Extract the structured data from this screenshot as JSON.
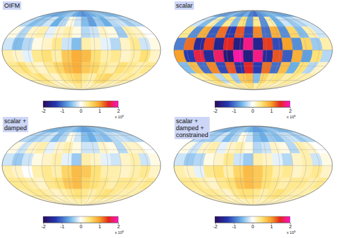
{
  "chart_data": [
    {
      "type": "heatmap",
      "title": "OIFM",
      "xlim": [
        -180,
        180
      ],
      "ylim": [
        -90,
        90
      ],
      "xticks": [
        -180,
        -150,
        -120,
        -90,
        -60,
        -30,
        0,
        30,
        60,
        90,
        120,
        150,
        180
      ],
      "yticks": [
        -90,
        -60,
        -30,
        0,
        30,
        60,
        90
      ],
      "grid": true,
      "tick_labels": false,
      "cells": [
        [
          -0.5,
          -0.6,
          -0.7,
          -0.6,
          -0.5,
          -0.4,
          -0.6,
          -0.7,
          -0.8,
          -0.7,
          -0.6,
          -0.5,
          -0.4,
          -0.5,
          -0.6,
          -0.5
        ],
        [
          -0.3,
          -0.5,
          -0.4,
          -0.2,
          -0.6,
          -0.3,
          0.1,
          -0.2,
          -0.5,
          -0.7,
          -0.4,
          -0.6,
          -0.3,
          -0.2,
          -0.4,
          -0.3
        ],
        [
          0.1,
          -0.3,
          0.2,
          0.3,
          -0.1,
          0.2,
          0.3,
          0.1,
          -0.3,
          -0.2,
          0.2,
          0.1,
          -0.4,
          0.3,
          0.2,
          0.0
        ],
        [
          -0.2,
          -0.5,
          -0.3,
          0.1,
          0.2,
          0.4,
          -0.2,
          -0.5,
          0.3,
          0.2,
          -0.1,
          -0.3,
          0.2,
          0.4,
          -0.2,
          0.1
        ],
        [
          0.3,
          0.2,
          -0.1,
          0.4,
          0.5,
          0.3,
          0.7,
          0.9,
          0.8,
          0.5,
          0.3,
          0.4,
          0.2,
          0.3,
          0.5,
          0.2
        ],
        [
          0.4,
          0.5,
          0.3,
          0.2,
          0.4,
          0.6,
          0.8,
          0.9,
          0.7,
          0.6,
          0.4,
          0.3,
          0.5,
          0.4,
          0.3,
          0.4
        ],
        [
          0.3,
          0.4,
          0.5,
          0.3,
          0.2,
          0.4,
          0.5,
          0.6,
          0.4,
          0.3,
          0.5,
          0.6,
          0.4,
          0.3,
          0.4,
          0.3
        ],
        [
          0.2,
          0.3,
          0.3,
          0.2,
          0.3,
          0.2,
          0.3,
          0.4,
          0.3,
          0.2,
          0.3,
          0.3,
          0.2,
          0.3,
          0.2,
          0.2
        ]
      ],
      "colorbar_range": [
        -2,
        2
      ],
      "colorbar_ticks": [
        -2,
        -1,
        0,
        1,
        2
      ],
      "colorbar_label": "x 10⁵"
    },
    {
      "type": "heatmap",
      "title": "scalar",
      "xlim": [
        -180,
        180
      ],
      "ylim": [
        -90,
        90
      ],
      "xticks": [
        -180,
        -150,
        -120,
        -90,
        -60,
        -30,
        0,
        30,
        60,
        90,
        120,
        150,
        180
      ],
      "yticks": [
        -90,
        -60,
        -30,
        0,
        30,
        60,
        90
      ],
      "grid": true,
      "tick_labels": false,
      "cells": [
        [
          -0.6,
          -0.8,
          -0.7,
          -0.5,
          -0.7,
          -0.8,
          -0.6,
          -0.9,
          -1.0,
          -0.8,
          -0.7,
          -0.6,
          -0.5,
          -0.6,
          -0.7,
          -0.6
        ],
        [
          -0.2,
          -0.5,
          0.3,
          -0.6,
          0.4,
          -0.5,
          0.5,
          -0.7,
          0.4,
          -0.8,
          0.3,
          -0.6,
          -0.2,
          -0.4,
          -0.3,
          -0.2
        ],
        [
          0.4,
          -0.8,
          0.9,
          -1.1,
          1.2,
          -1.3,
          1.3,
          -1.2,
          1.1,
          -1.0,
          0.9,
          -0.8,
          0.6,
          -0.5,
          0.3,
          -0.2
        ],
        [
          -0.9,
          1.2,
          -1.5,
          1.4,
          -1.6,
          1.5,
          -1.7,
          1.8,
          -1.6,
          1.4,
          -1.2,
          1.0,
          -0.8,
          0.6,
          -0.4,
          0.3
        ],
        [
          1.0,
          -1.3,
          1.6,
          -1.5,
          1.7,
          -1.8,
          1.9,
          -1.7,
          1.8,
          -1.5,
          1.3,
          -1.1,
          0.9,
          -0.7,
          0.5,
          -0.3
        ],
        [
          -0.5,
          0.8,
          -1.0,
          1.1,
          -1.2,
          1.3,
          -1.4,
          1.5,
          -1.3,
          1.2,
          -1.0,
          0.8,
          -0.6,
          0.5,
          -0.3,
          0.2
        ],
        [
          0.3,
          0.4,
          0.6,
          -0.3,
          0.5,
          -0.4,
          0.7,
          0.8,
          -0.5,
          0.6,
          0.4,
          0.5,
          0.3,
          0.4,
          0.3,
          0.3
        ],
        [
          0.3,
          0.4,
          0.3,
          0.2,
          0.4,
          0.3,
          0.4,
          0.5,
          0.3,
          0.4,
          0.3,
          0.3,
          0.2,
          0.3,
          0.3,
          0.2
        ]
      ],
      "colorbar_range": [
        -2,
        2
      ],
      "colorbar_ticks": [
        -2,
        -1,
        0,
        1,
        2
      ],
      "colorbar_label": "x 10⁵"
    },
    {
      "type": "heatmap",
      "title": "scalar + damped",
      "xlim": [
        -180,
        180
      ],
      "ylim": [
        -90,
        90
      ],
      "xticks": [
        -180,
        -150,
        -120,
        -90,
        -60,
        -30,
        0,
        30,
        60,
        90,
        120,
        150,
        180
      ],
      "yticks": [
        -90,
        -60,
        -30,
        0,
        30,
        60,
        90
      ],
      "grid": true,
      "tick_labels": false,
      "cells": [
        [
          -0.5,
          -0.6,
          -0.6,
          -0.5,
          -0.5,
          -0.4,
          -0.5,
          -0.6,
          -0.7,
          -0.7,
          -0.6,
          -0.5,
          -0.4,
          -0.5,
          -0.5,
          -0.5
        ],
        [
          -0.3,
          -0.4,
          -0.3,
          -0.2,
          -0.5,
          -0.3,
          0.1,
          -0.2,
          -0.5,
          -0.6,
          -0.4,
          -0.5,
          -0.3,
          -0.2,
          -0.3,
          -0.3
        ],
        [
          0.1,
          -0.2,
          0.2,
          0.3,
          -0.1,
          0.2,
          0.3,
          0.1,
          -0.2,
          -0.2,
          0.2,
          0.1,
          -0.3,
          0.2,
          0.2,
          0.0
        ],
        [
          -0.2,
          -0.4,
          -0.2,
          0.1,
          0.2,
          0.3,
          -0.1,
          -0.4,
          0.3,
          0.2,
          -0.1,
          -0.2,
          0.2,
          0.3,
          -0.2,
          0.1
        ],
        [
          0.3,
          0.2,
          0.0,
          0.3,
          0.4,
          0.3,
          0.6,
          0.8,
          0.7,
          0.5,
          0.3,
          0.3,
          0.2,
          0.3,
          0.4,
          0.2
        ],
        [
          0.4,
          0.4,
          0.3,
          0.2,
          0.4,
          0.5,
          0.7,
          0.8,
          0.6,
          0.5,
          0.4,
          0.3,
          0.4,
          0.4,
          0.3,
          0.4
        ],
        [
          0.3,
          0.4,
          0.4,
          0.3,
          0.2,
          0.3,
          0.4,
          0.5,
          0.4,
          0.3,
          0.4,
          0.5,
          0.4,
          0.3,
          0.3,
          0.3
        ],
        [
          0.2,
          0.3,
          0.3,
          0.2,
          0.3,
          0.2,
          0.3,
          0.3,
          0.3,
          0.2,
          0.3,
          0.3,
          0.2,
          0.3,
          0.2,
          0.2
        ]
      ],
      "colorbar_range": [
        -2,
        2
      ],
      "colorbar_ticks": [
        -2,
        -1,
        0,
        1,
        2
      ],
      "colorbar_label": "x 10⁵"
    },
    {
      "type": "heatmap",
      "title": "scalar + damped + constrained",
      "xlim": [
        -180,
        180
      ],
      "ylim": [
        -90,
        90
      ],
      "xticks": [
        -180,
        -150,
        -120,
        -90,
        -60,
        -30,
        0,
        30,
        60,
        90,
        120,
        150,
        180
      ],
      "yticks": [
        -90,
        -60,
        -30,
        0,
        30,
        60,
        90
      ],
      "grid": true,
      "tick_labels": false,
      "cells": [
        [
          -0.5,
          -0.6,
          -0.7,
          -0.5,
          -0.5,
          -0.4,
          -0.5,
          -0.6,
          -0.7,
          -0.7,
          -0.6,
          -0.5,
          -0.4,
          -0.5,
          -0.6,
          -0.5
        ],
        [
          -0.3,
          -0.4,
          -0.4,
          -0.2,
          -0.5,
          -0.3,
          0.1,
          -0.2,
          -0.5,
          -0.6,
          -0.4,
          -0.5,
          -0.3,
          -0.2,
          -0.4,
          -0.3
        ],
        [
          0.1,
          -0.2,
          0.2,
          0.3,
          -0.1,
          0.2,
          0.3,
          0.1,
          -0.3,
          -0.2,
          0.2,
          0.1,
          -0.3,
          0.3,
          0.2,
          0.0
        ],
        [
          -0.2,
          -0.4,
          -0.3,
          0.1,
          0.2,
          0.4,
          -0.2,
          -0.4,
          0.3,
          0.2,
          -0.1,
          -0.3,
          0.2,
          0.3,
          -0.2,
          0.1
        ],
        [
          0.3,
          0.2,
          -0.1,
          0.4,
          0.5,
          0.3,
          0.6,
          0.8,
          0.7,
          0.5,
          0.3,
          0.4,
          0.2,
          0.3,
          0.4,
          0.2
        ],
        [
          0.4,
          0.4,
          0.3,
          0.2,
          0.4,
          0.5,
          0.7,
          0.8,
          0.7,
          0.5,
          0.4,
          0.3,
          0.4,
          0.4,
          0.3,
          0.4
        ],
        [
          0.3,
          0.4,
          0.4,
          0.3,
          0.2,
          0.4,
          0.5,
          0.5,
          0.4,
          0.3,
          0.4,
          0.5,
          0.4,
          0.3,
          0.3,
          0.3
        ],
        [
          0.2,
          0.3,
          0.3,
          0.2,
          0.3,
          0.2,
          0.3,
          0.3,
          0.3,
          0.2,
          0.3,
          0.3,
          0.2,
          0.3,
          0.2,
          0.2
        ]
      ],
      "colorbar_range": [
        -2,
        2
      ],
      "colorbar_ticks": [
        -2,
        -1,
        0,
        1,
        2
      ],
      "colorbar_label": "x 10⁵"
    }
  ]
}
